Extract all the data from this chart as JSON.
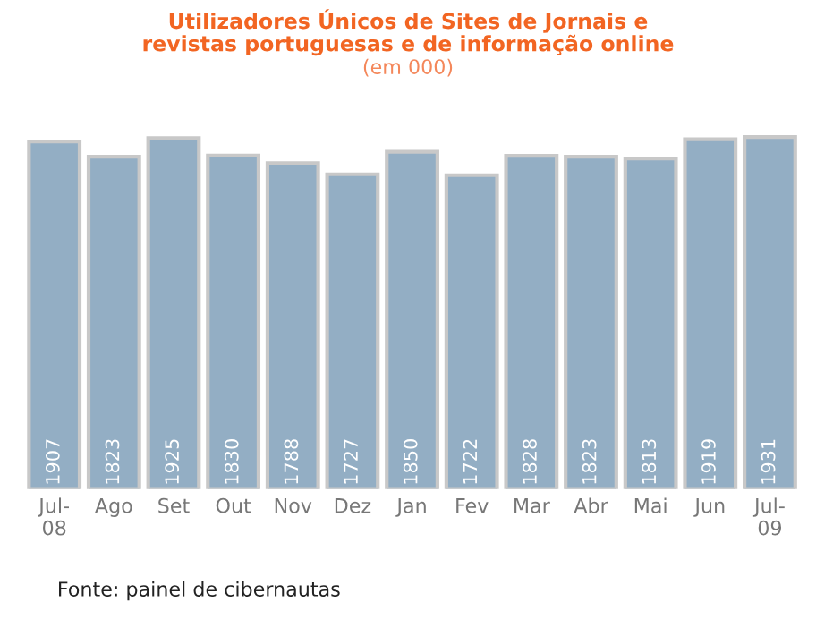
{
  "chart_data": {
    "type": "bar",
    "title": "Utilizadores Únicos de Sites de Jornais e\nrevistas portuguesas e de informação online",
    "subtitle": "(em 000)",
    "categories": [
      "Jul-\n08",
      "Ago",
      "Set",
      "Out",
      "Nov",
      "Dez",
      "Jan",
      "Fev",
      "Mar",
      "Abr",
      "Mai",
      "Jun",
      "Jul-\n09"
    ],
    "values": [
      1907,
      1823,
      1925,
      1830,
      1788,
      1727,
      1850,
      1722,
      1828,
      1823,
      1813,
      1919,
      1931
    ],
    "color": "#93aec4",
    "data_labels": true,
    "grid": false,
    "legend": false,
    "annotations": [
      "Fonte: painel de cibernautas"
    ]
  }
}
